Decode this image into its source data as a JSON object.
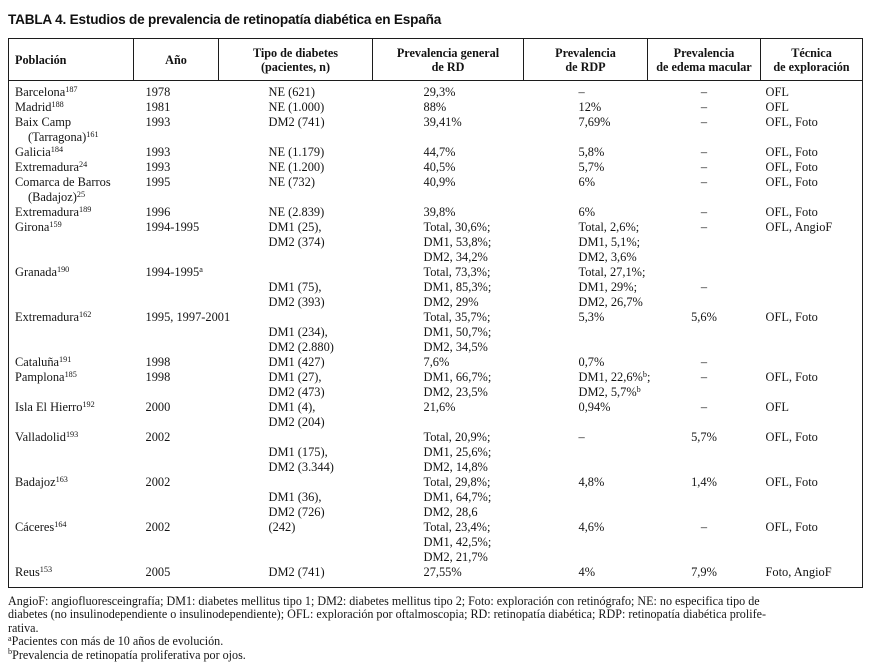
{
  "title": "TABLA 4. Estudios de prevalencia de retinopatía diabética en España",
  "table": {
    "row_keys": [
      "poblacion",
      "ano",
      "tipo",
      "rd",
      "rdp",
      "edema",
      "tecnica"
    ],
    "columns": [
      {
        "key": "poblacion",
        "label_lines": [
          "Población"
        ]
      },
      {
        "key": "ano",
        "label_lines": [
          "Año"
        ]
      },
      {
        "key": "tipo",
        "label_lines": [
          "Tipo de diabetes",
          "(pacientes, n)"
        ]
      },
      {
        "key": "rd",
        "label_lines": [
          "Prevalencia general",
          "de RD"
        ]
      },
      {
        "key": "rdp",
        "label_lines": [
          "Prevalencia",
          "de RDP"
        ]
      },
      {
        "key": "edema",
        "label_lines": [
          "Prevalencia",
          "de edema macular"
        ]
      },
      {
        "key": "tecnica",
        "label_lines": [
          "Técnica",
          "de exploración"
        ]
      }
    ],
    "rows": [
      {
        "poblacion": [
          "Barcelona^{187}"
        ],
        "ano": [
          "1978"
        ],
        "tipo": [
          "NE (621)"
        ],
        "rd": [
          "29,3%"
        ],
        "rdp": [
          "–"
        ],
        "edema": [
          "–"
        ],
        "tecnica": [
          "OFL"
        ]
      },
      {
        "poblacion": [
          "Madrid^{188}"
        ],
        "ano": [
          "1981"
        ],
        "tipo": [
          "NE (1.000)"
        ],
        "rd": [
          "88%"
        ],
        "rdp": [
          "12%"
        ],
        "edema": [
          "–"
        ],
        "tecnica": [
          "OFL"
        ]
      },
      {
        "poblacion": [
          "Baix Camp",
          "(Tarragona)^{161}"
        ],
        "ano": [
          "1993"
        ],
        "tipo": [
          "DM2 (741)"
        ],
        "rd": [
          "39,41%"
        ],
        "rdp": [
          "7,69%"
        ],
        "edema": [
          "–"
        ],
        "tecnica": [
          "OFL, Foto"
        ]
      },
      {
        "poblacion": [
          "Galicia^{184}"
        ],
        "ano": [
          "1993"
        ],
        "tipo": [
          "NE (1.179)"
        ],
        "rd": [
          "44,7%"
        ],
        "rdp": [
          "5,8%"
        ],
        "edema": [
          "–"
        ],
        "tecnica": [
          "OFL, Foto"
        ]
      },
      {
        "poblacion": [
          "Extremadura^{24}"
        ],
        "ano": [
          "1993"
        ],
        "tipo": [
          "NE (1.200)"
        ],
        "rd": [
          "40,5%"
        ],
        "rdp": [
          "5,7%"
        ],
        "edema": [
          "–"
        ],
        "tecnica": [
          "OFL, Foto"
        ]
      },
      {
        "poblacion": [
          "Comarca de Barros",
          "(Badajoz)^{25}"
        ],
        "ano": [
          "1995"
        ],
        "tipo": [
          "NE (732)"
        ],
        "rd": [
          "40,9%"
        ],
        "rdp": [
          "6%"
        ],
        "edema": [
          "–"
        ],
        "tecnica": [
          "OFL, Foto"
        ]
      },
      {
        "poblacion": [
          "Extremadura^{189}"
        ],
        "ano": [
          "1996"
        ],
        "tipo": [
          "NE (2.839)"
        ],
        "rd": [
          "39,8%"
        ],
        "rdp": [
          "6%"
        ],
        "edema": [
          "–"
        ],
        "tecnica": [
          "OFL, Foto"
        ]
      },
      {
        "poblacion": [
          "Girona^{159}"
        ],
        "ano": [
          "1994-1995"
        ],
        "tipo": [
          "DM1 (25),",
          "DM2 (374)"
        ],
        "rd": [
          "Total, 30,6%;",
          "DM1, 53,8%;",
          "DM2, 34,2%"
        ],
        "rdp": [
          "Total, 2,6%;",
          "DM1, 5,1%;",
          "DM2, 3,6%"
        ],
        "edema": [
          "–"
        ],
        "tecnica": [
          "OFL, AngioF"
        ]
      },
      {
        "poblacion": [
          "Granada^{190}"
        ],
        "ano": [
          "1994-1995^{a}"
        ],
        "tipo": [
          "",
          "DM1 (75),",
          "DM2 (393)"
        ],
        "rd": [
          "Total, 73,3%;",
          "DM1, 85,3%;",
          "DM2, 29%"
        ],
        "rdp": [
          "Total, 27,1%;",
          "DM1, 29%;",
          "DM2, 26,7%"
        ],
        "edema": [
          "",
          "–"
        ],
        "tecnica": []
      },
      {
        "poblacion": [
          "Extremadura^{162}"
        ],
        "ano": [
          "1995, 1997-2001"
        ],
        "tipo": [
          "",
          "DM1 (234),",
          "DM2 (2.880)"
        ],
        "rd": [
          "Total, 35,7%;",
          "DM1, 50,7%;",
          "DM2, 34,5%"
        ],
        "rdp": [
          "5,3%"
        ],
        "edema": [
          "5,6%"
        ],
        "tecnica": [
          "OFL, Foto"
        ]
      },
      {
        "poblacion": [
          "Cataluña^{191}"
        ],
        "ano": [
          "1998"
        ],
        "tipo": [
          "DM1 (427)"
        ],
        "rd": [
          "7,6%"
        ],
        "rdp": [
          "0,7%"
        ],
        "edema": [
          "–"
        ],
        "tecnica": []
      },
      {
        "poblacion": [
          "Pamplona^{185}"
        ],
        "ano": [
          "1998"
        ],
        "tipo": [
          "DM1 (27),",
          "DM2 (473)"
        ],
        "rd": [
          "DM1, 66,7%;",
          "DM2, 23,5%"
        ],
        "rdp": [
          "DM1, 22,6%^{b};",
          "DM2, 5,7%^{b}"
        ],
        "edema": [
          "–"
        ],
        "tecnica": [
          "OFL, Foto"
        ]
      },
      {
        "poblacion": [
          "Isla El Hierro^{192}"
        ],
        "ano": [
          "2000"
        ],
        "tipo": [
          "DM1 (4),",
          "DM2 (204)"
        ],
        "rd": [
          "21,6%"
        ],
        "rdp": [
          "0,94%"
        ],
        "edema": [
          "–"
        ],
        "tecnica": [
          "OFL"
        ]
      },
      {
        "poblacion": [
          "Valladolid^{193}"
        ],
        "ano": [
          "2002"
        ],
        "tipo": [
          "",
          "DM1 (175),",
          "DM2 (3.344)"
        ],
        "rd": [
          "Total, 20,9%;",
          "DM1, 25,6%;",
          "DM2, 14,8%"
        ],
        "rdp": [
          "–"
        ],
        "edema": [
          "5,7%"
        ],
        "tecnica": [
          "OFL, Foto"
        ]
      },
      {
        "poblacion": [
          "Badajoz^{163}"
        ],
        "ano": [
          "2002"
        ],
        "tipo": [
          "",
          "DM1 (36),",
          "DM2 (726)"
        ],
        "rd": [
          "Total, 29,8%;",
          "DM1, 64,7%;",
          "DM2, 28,6"
        ],
        "rdp": [
          "4,8%"
        ],
        "edema": [
          "1,4%"
        ],
        "tecnica": [
          "OFL, Foto"
        ]
      },
      {
        "poblacion": [
          "Cáceres^{164}"
        ],
        "ano": [
          "2002"
        ],
        "tipo": [
          "(242)"
        ],
        "rd": [
          "Total, 23,4%;",
          "DM1, 42,5%;",
          "DM2, 21,7%"
        ],
        "rdp": [
          "4,6%"
        ],
        "edema": [
          "–"
        ],
        "tecnica": [
          "OFL, Foto"
        ]
      },
      {
        "poblacion": [
          "Reus^{153}"
        ],
        "ano": [
          "2005"
        ],
        "tipo": [
          "DM2 (741)"
        ],
        "rd": [
          "27,55%"
        ],
        "rdp": [
          "4%"
        ],
        "edema": [
          "7,9%"
        ],
        "tecnica": [
          "Foto, AngioF"
        ]
      }
    ]
  },
  "footnotes": {
    "abbrev_lines": [
      "AngioF: angiofluoresceingrafía; DM1: diabetes mellitus tipo 1; DM2: diabetes mellitus tipo 2; Foto: exploración con retinógrafo; NE: no especifica tipo de",
      "diabetes (no insulinodependiente o insulinodependiente); OFL: exploración por oftalmoscopia; RD: retinopatía diabética; RDP: retinopatía diabética prolife-",
      "rativa."
    ],
    "notes": [
      "^{a}Pacientes con más de 10 años de evolución.",
      "^{b}Prevalencia de retinopatía proliferativa por ojos."
    ]
  }
}
